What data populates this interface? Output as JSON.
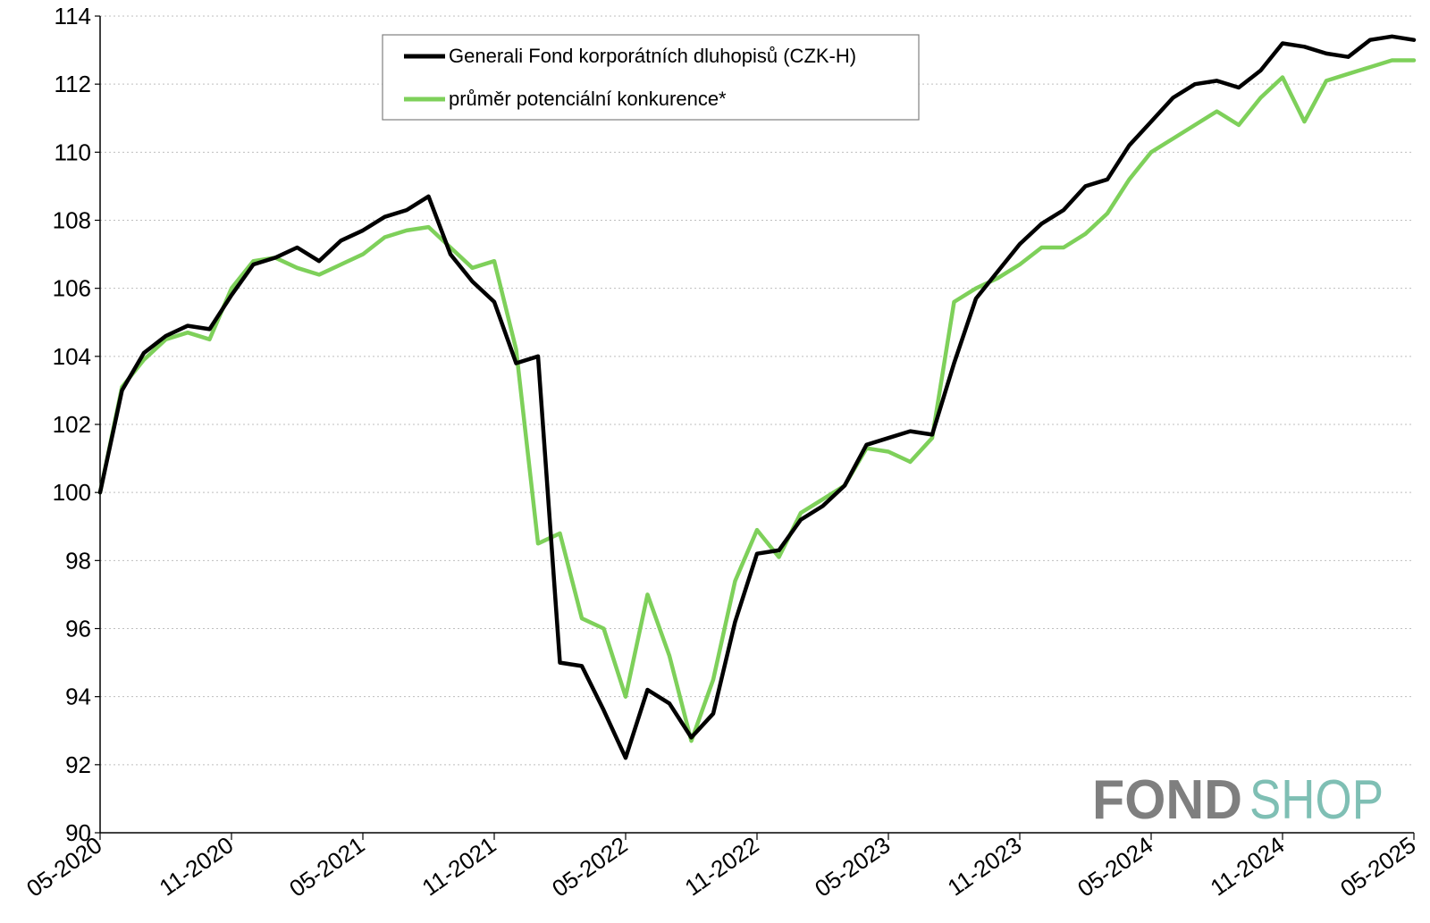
{
  "chart_data": {
    "type": "line",
    "title": "",
    "xlabel": "",
    "ylabel": "",
    "ylim": [
      90,
      114
    ],
    "yticks": [
      "90",
      "92",
      "94",
      "96",
      "98",
      "100",
      "102",
      "104",
      "106",
      "108",
      "110",
      "112",
      "114"
    ],
    "xlim": [
      "05-2020",
      "05-2025"
    ],
    "xticks": [
      "05-2020",
      "11-2020",
      "05-2021",
      "11-2021",
      "05-2022",
      "11-2022",
      "05-2023",
      "11-2023",
      "05-2024",
      "11-2024",
      "05-2025"
    ],
    "grid": "horizontal dotted",
    "legend_position": "top-center",
    "x": [
      "05-2020",
      "06-2020",
      "07-2020",
      "08-2020",
      "09-2020",
      "10-2020",
      "11-2020",
      "12-2020",
      "01-2021",
      "02-2021",
      "03-2021",
      "04-2021",
      "05-2021",
      "06-2021",
      "07-2021",
      "08-2021",
      "09-2021",
      "10-2021",
      "11-2021",
      "12-2021",
      "01-2022",
      "02-2022",
      "03-2022",
      "04-2022",
      "05-2022",
      "06-2022",
      "07-2022",
      "08-2022",
      "09-2022",
      "10-2022",
      "11-2022",
      "12-2022",
      "01-2023",
      "02-2023",
      "03-2023",
      "04-2023",
      "05-2023",
      "06-2023",
      "07-2023",
      "08-2023",
      "09-2023",
      "10-2023",
      "11-2023",
      "12-2023",
      "01-2024",
      "02-2024",
      "03-2024",
      "04-2024",
      "05-2024",
      "06-2024",
      "07-2024",
      "08-2024",
      "09-2024",
      "10-2024",
      "11-2024",
      "12-2024",
      "01-2025",
      "02-2025",
      "03-2025",
      "04-2025",
      "05-2025"
    ],
    "series": [
      {
        "name": "Generali Fond korporátních dluhopisů (CZK-H)",
        "color": "#000000",
        "values": [
          100.0,
          103.0,
          104.1,
          104.6,
          104.9,
          104.8,
          105.8,
          106.7,
          106.9,
          107.2,
          106.8,
          107.4,
          107.7,
          108.1,
          108.3,
          108.7,
          107.0,
          106.2,
          105.6,
          103.8,
          104.0,
          95.0,
          94.9,
          93.6,
          92.2,
          94.2,
          93.8,
          92.8,
          93.5,
          96.2,
          98.2,
          98.3,
          99.2,
          99.6,
          100.2,
          101.4,
          101.6,
          101.8,
          101.7,
          103.8,
          105.7,
          106.5,
          107.3,
          107.9,
          108.3,
          109.0,
          109.2,
          110.2,
          110.9,
          111.6,
          112.0,
          112.1,
          111.9,
          112.4,
          113.2,
          113.1,
          112.9,
          112.8,
          113.3,
          113.4,
          113.3
        ]
      },
      {
        "name": "průměr potenciální konkurence*",
        "color": "#7ed05a",
        "values": [
          100.0,
          103.1,
          103.9,
          104.5,
          104.7,
          104.5,
          106.0,
          106.8,
          106.9,
          106.6,
          106.4,
          106.7,
          107.0,
          107.5,
          107.7,
          107.8,
          107.2,
          106.6,
          106.8,
          104.2,
          98.5,
          98.8,
          96.3,
          96.0,
          94.0,
          97.0,
          95.2,
          92.7,
          94.5,
          97.4,
          98.9,
          98.1,
          99.4,
          99.8,
          100.2,
          101.3,
          101.2,
          100.9,
          101.6,
          105.6,
          106.0,
          106.3,
          106.7,
          107.2,
          107.2,
          107.6,
          108.2,
          109.2,
          110.0,
          110.4,
          110.8,
          111.2,
          110.8,
          111.6,
          112.2,
          110.9,
          112.1,
          112.3,
          112.5,
          112.7,
          112.7
        ]
      }
    ]
  },
  "logo": {
    "part1": "FOND",
    "part2": "SHOP",
    "color1": "#7f7f7f",
    "color2": "#7fbfb4"
  }
}
